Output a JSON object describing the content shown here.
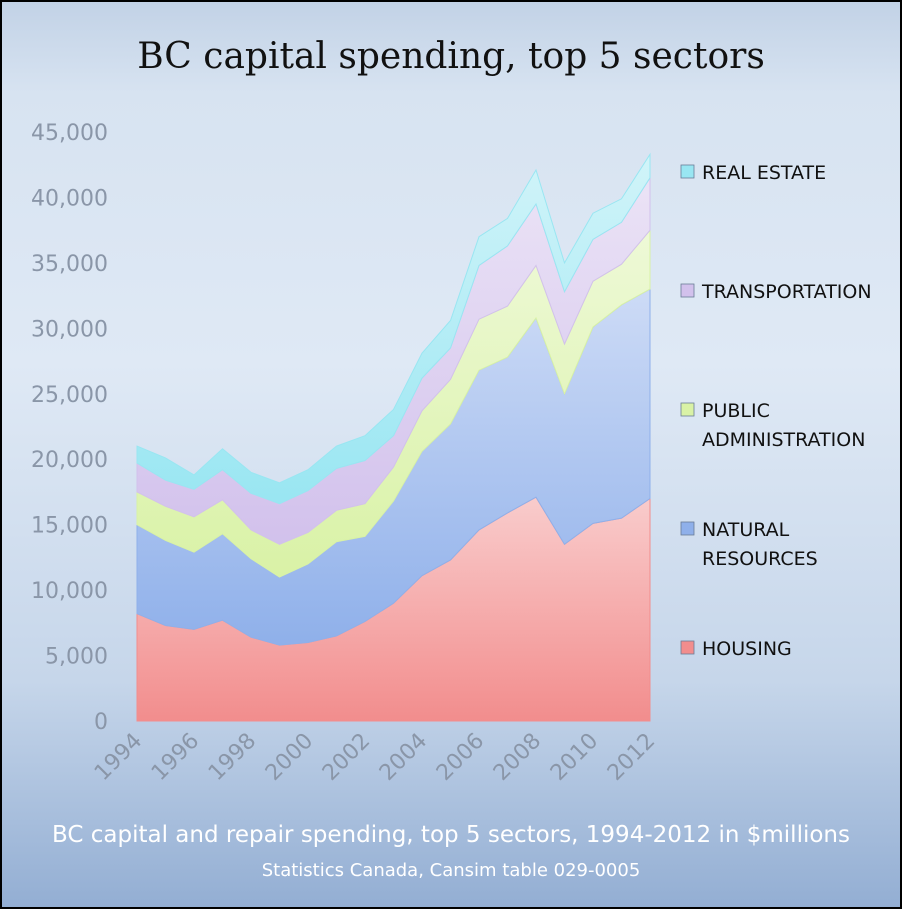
{
  "chart_data": {
    "type": "area",
    "stacked": true,
    "title": "BC capital spending, top 5 sectors",
    "caption": "BC capital and repair spending, top 5 sectors, 1994-2012 in $millions",
    "source": "Statistics Canada, Cansim table 029-0005",
    "x": [
      "1994",
      "1995",
      "1996",
      "1997",
      "1998",
      "1999",
      "2000",
      "2001",
      "2002",
      "2003",
      "2004",
      "2005",
      "2006",
      "2007",
      "2008",
      "2009",
      "2010",
      "2011",
      "2012"
    ],
    "x_tick_labels": [
      "1994",
      "1996",
      "1998",
      "2000",
      "2002",
      "2004",
      "2006",
      "2008",
      "2010",
      "2012"
    ],
    "y_tick_labels": [
      "0",
      "5,000",
      "10,000",
      "15,000",
      "20,000",
      "25,000",
      "30,000",
      "35,000",
      "40,000",
      "45,000"
    ],
    "ylim": [
      0,
      45000
    ],
    "legend_position": "right",
    "series": [
      {
        "name": "HOUSING",
        "color": "#f28d8d",
        "values": [
          8200,
          7300,
          7000,
          7700,
          6400,
          5800,
          6000,
          6500,
          7600,
          9000,
          11100,
          12300,
          14600,
          15900,
          17100,
          13500,
          15100,
          15500,
          17000
        ]
      },
      {
        "name": "NATURAL RESOURCES",
        "color": "#8fb0ea",
        "values": [
          6800,
          6500,
          5900,
          6600,
          6000,
          5200,
          6000,
          7200,
          6500,
          7800,
          9500,
          10400,
          12200,
          11900,
          13700,
          11500,
          15000,
          16300,
          16000
        ]
      },
      {
        "name": "PUBLIC ADMINISTRATION",
        "color": "#d9f2a6",
        "values": [
          2500,
          2600,
          2700,
          2600,
          2200,
          2500,
          2400,
          2400,
          2500,
          2600,
          3100,
          3400,
          3900,
          3900,
          4000,
          3800,
          3500,
          3100,
          4500
        ]
      },
      {
        "name": "TRANSPORTATION",
        "color": "#d2c1ec",
        "values": [
          2200,
          2000,
          2100,
          2300,
          2800,
          3100,
          3200,
          3200,
          3300,
          2400,
          2500,
          2400,
          4100,
          4600,
          4700,
          4000,
          3200,
          3200,
          4000
        ]
      },
      {
        "name": "REAL ESTATE",
        "color": "#99e6f2",
        "values": [
          1300,
          1700,
          1100,
          1600,
          1600,
          1600,
          1600,
          1700,
          1900,
          2000,
          1900,
          2100,
          2200,
          2100,
          2600,
          2200,
          2000,
          1800,
          1800
        ]
      }
    ]
  }
}
